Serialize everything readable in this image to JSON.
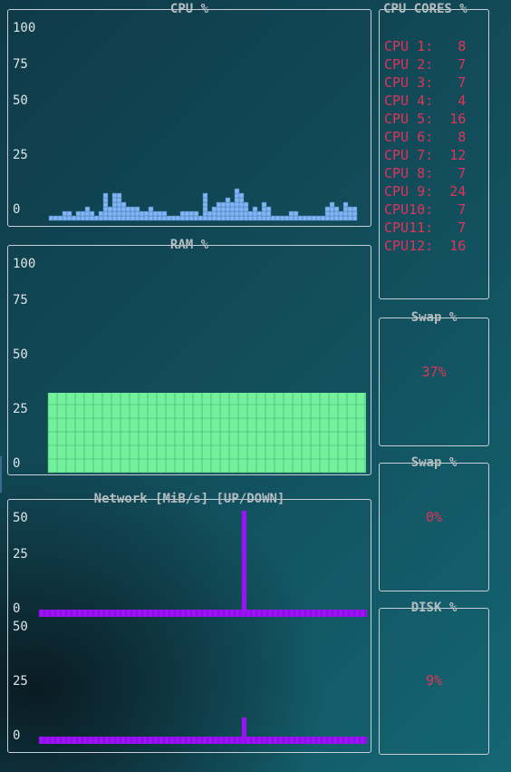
{
  "cpu": {
    "title": "CPU %",
    "y_ticks": [
      "100",
      "75",
      "50",
      "25",
      "0"
    ],
    "history": [
      1,
      1,
      1,
      2,
      2,
      1,
      2,
      2,
      3,
      2,
      1,
      2,
      6,
      3,
      6,
      6,
      4,
      3,
      3,
      3,
      2,
      2,
      3,
      2,
      2,
      2,
      1,
      1,
      1,
      2,
      2,
      2,
      2,
      1,
      6,
      2,
      3,
      4,
      4,
      5,
      4,
      7,
      6,
      4,
      2,
      3,
      2,
      4,
      3,
      1,
      1,
      1,
      1,
      2,
      2,
      1,
      1,
      1,
      1,
      1,
      1,
      3,
      4,
      3,
      2,
      4,
      3,
      3
    ],
    "bar_color": "#7fb6f5"
  },
  "cores": {
    "title": "CPU CORES %",
    "items": [
      {
        "label": "CPU 1:",
        "value": "8"
      },
      {
        "label": "CPU 2:",
        "value": "7"
      },
      {
        "label": "CPU 3:",
        "value": "7"
      },
      {
        "label": "CPU 4:",
        "value": "4"
      },
      {
        "label": "CPU 5:",
        "value": "16"
      },
      {
        "label": "CPU 6:",
        "value": "8"
      },
      {
        "label": "CPU 7:",
        "value": "12"
      },
      {
        "label": "CPU 8:",
        "value": "7"
      },
      {
        "label": "CPU 9:",
        "value": "24"
      },
      {
        "label": "CPU10:",
        "value": "7"
      },
      {
        "label": "CPU11:",
        "value": "7"
      },
      {
        "label": "CPU12:",
        "value": "16"
      }
    ]
  },
  "ram": {
    "title": "RAM %",
    "y_ticks": [
      "100",
      "75",
      "50",
      "25",
      "0"
    ],
    "level_percent": 37,
    "fill_color": "#73f09c"
  },
  "swap1": {
    "title": "Swap %",
    "value": "37%"
  },
  "swap2": {
    "title": "Swap %",
    "value": "0%"
  },
  "disk": {
    "title": "DISK %",
    "value": "9%"
  },
  "network": {
    "title": "Network [MiB/s] [UP/DOWN]",
    "up": {
      "y_ticks": [
        "50",
        "25",
        "0"
      ],
      "baseline_level": 1,
      "spike_level": 50
    },
    "down": {
      "y_ticks": [
        "50",
        "25",
        "0"
      ],
      "baseline_level": 1,
      "spike_level": 10
    },
    "line_color": "#9a12f5"
  }
}
